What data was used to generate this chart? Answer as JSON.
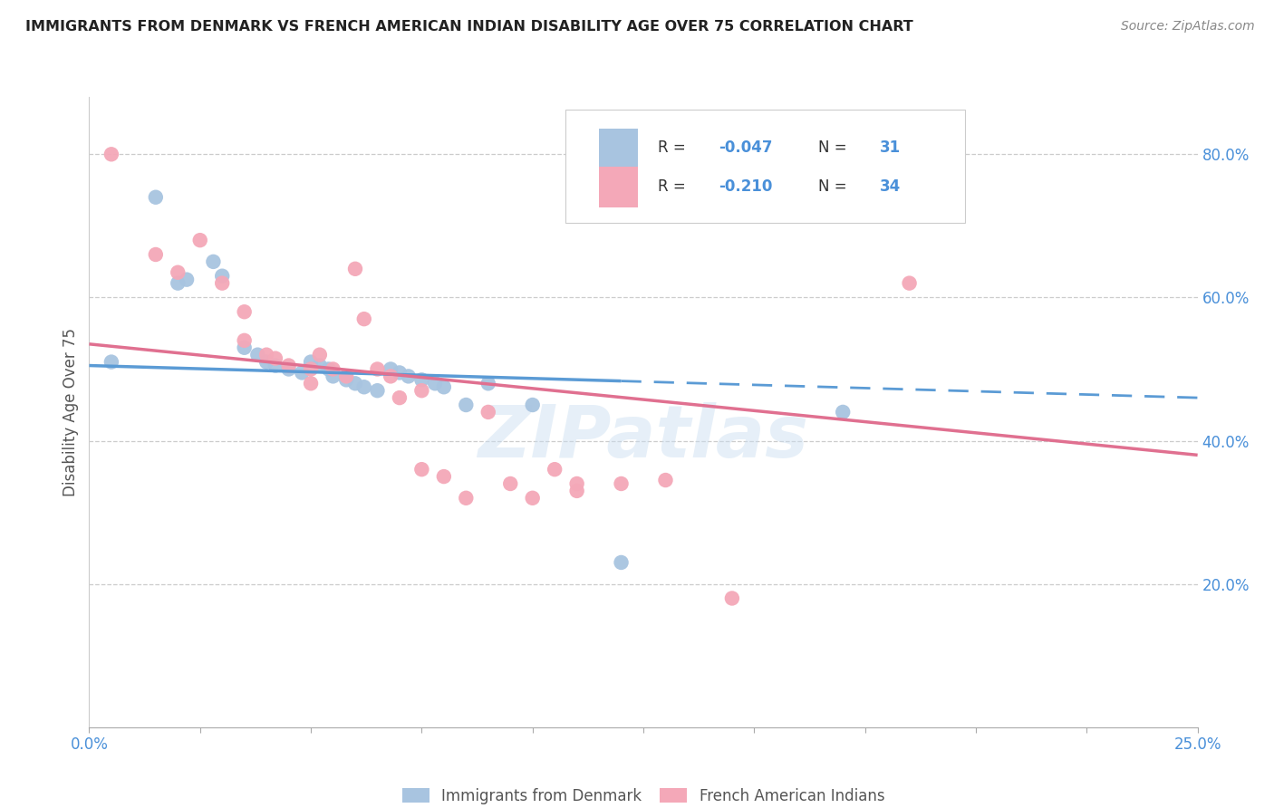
{
  "title": "IMMIGRANTS FROM DENMARK VS FRENCH AMERICAN INDIAN DISABILITY AGE OVER 75 CORRELATION CHART",
  "source": "Source: ZipAtlas.com",
  "ylabel": "Disability Age Over 75",
  "watermark": "ZIPatlas",
  "legend1_label": "Immigrants from Denmark",
  "legend2_label": "French American Indians",
  "blue_color": "#a8c4e0",
  "pink_color": "#f4a8b8",
  "line_blue": "#5b9bd5",
  "line_pink": "#e07090",
  "text_blue": "#4a90d9",
  "text_dark": "#333333",
  "blue_scatter": [
    [
      0.5,
      51.0
    ],
    [
      1.5,
      74.0
    ],
    [
      2.0,
      62.0
    ],
    [
      2.2,
      62.5
    ],
    [
      2.8,
      65.0
    ],
    [
      3.0,
      63.0
    ],
    [
      3.5,
      53.0
    ],
    [
      3.8,
      52.0
    ],
    [
      4.0,
      51.0
    ],
    [
      4.2,
      50.5
    ],
    [
      4.5,
      50.0
    ],
    [
      4.8,
      49.5
    ],
    [
      5.0,
      51.0
    ],
    [
      5.2,
      50.5
    ],
    [
      5.4,
      50.0
    ],
    [
      5.5,
      49.0
    ],
    [
      5.8,
      48.5
    ],
    [
      6.0,
      48.0
    ],
    [
      6.2,
      47.5
    ],
    [
      6.5,
      47.0
    ],
    [
      6.8,
      50.0
    ],
    [
      7.0,
      49.5
    ],
    [
      7.2,
      49.0
    ],
    [
      7.5,
      48.5
    ],
    [
      7.8,
      48.0
    ],
    [
      8.0,
      47.5
    ],
    [
      8.5,
      45.0
    ],
    [
      9.0,
      48.0
    ],
    [
      10.0,
      45.0
    ],
    [
      12.0,
      23.0
    ],
    [
      17.0,
      44.0
    ]
  ],
  "pink_scatter": [
    [
      0.5,
      80.0
    ],
    [
      1.5,
      66.0
    ],
    [
      2.0,
      63.5
    ],
    [
      2.5,
      68.0
    ],
    [
      3.0,
      62.0
    ],
    [
      3.5,
      58.0
    ],
    [
      4.0,
      52.0
    ],
    [
      4.2,
      51.5
    ],
    [
      4.5,
      50.5
    ],
    [
      5.0,
      50.0
    ],
    [
      5.2,
      52.0
    ],
    [
      5.5,
      50.0
    ],
    [
      5.8,
      49.0
    ],
    [
      6.0,
      64.0
    ],
    [
      6.2,
      57.0
    ],
    [
      6.5,
      50.0
    ],
    [
      6.8,
      49.0
    ],
    [
      7.0,
      46.0
    ],
    [
      7.5,
      36.0
    ],
    [
      8.0,
      35.0
    ],
    [
      8.5,
      32.0
    ],
    [
      9.0,
      44.0
    ],
    [
      9.5,
      34.0
    ],
    [
      10.0,
      32.0
    ],
    [
      10.5,
      36.0
    ],
    [
      11.0,
      33.0
    ],
    [
      12.0,
      34.0
    ],
    [
      13.0,
      34.5
    ],
    [
      14.5,
      18.0
    ],
    [
      18.5,
      62.0
    ],
    [
      3.5,
      54.0
    ],
    [
      5.0,
      48.0
    ],
    [
      7.5,
      47.0
    ],
    [
      11.0,
      34.0
    ]
  ],
  "blue_line": {
    "x0": 0.0,
    "x1": 25.0,
    "y0": 50.5,
    "y1": 46.0
  },
  "pink_line": {
    "x0": 0.0,
    "x1": 25.0,
    "y0": 53.5,
    "y1": 38.0
  },
  "blue_solid_end": 12.0,
  "xmin": 0.0,
  "xmax": 25.0,
  "ymin": 0.0,
  "ymax": 88.0,
  "right_ytick_vals": [
    80.0,
    60.0,
    40.0,
    20.0
  ],
  "right_ytick_labels": [
    "80.0%",
    "60.0%",
    "40.0%",
    "20.0%"
  ]
}
